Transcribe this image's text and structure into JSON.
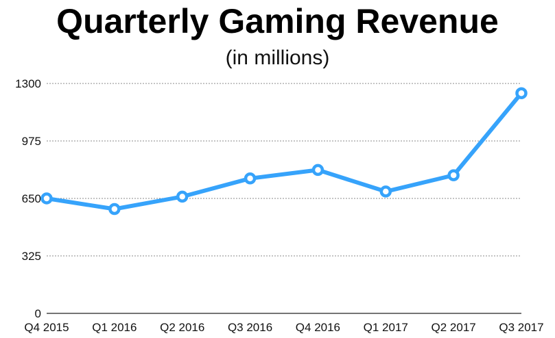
{
  "chart_data": {
    "type": "line",
    "title": "Quarterly Gaming Revenue",
    "subtitle": "(in millions)",
    "xlabel": "",
    "ylabel": "",
    "categories": [
      "Q4 2015",
      "Q1 2016",
      "Q2 2016",
      "Q3 2016",
      "Q4 2016",
      "Q1 2017",
      "Q2 2017",
      "Q3 2017"
    ],
    "series": [
      {
        "values": [
          650,
          590,
          660,
          763,
          811,
          689,
          781,
          1245
        ],
        "color": "#36a3fb"
      }
    ],
    "ylim": [
      0,
      1300
    ],
    "yticks": [
      0,
      325,
      650,
      975,
      1300
    ],
    "grid": true,
    "legend": "none"
  }
}
